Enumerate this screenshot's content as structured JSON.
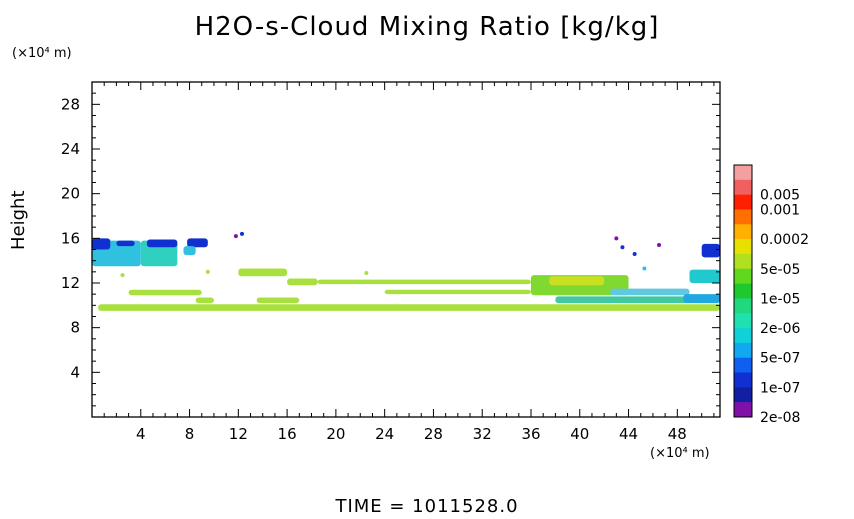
{
  "chart_data": {
    "type": "heatmap",
    "title": "H2O-s-Cloud Mixing Ratio [kg/kg]",
    "ylabel": "Height",
    "x_unit": "(×10⁴ m)",
    "y_unit": "(×10⁴ m)",
    "footer": "TIME  =  1011528.0",
    "xlim": [
      0,
      51.5
    ],
    "ylim": [
      0,
      30
    ],
    "x_ticks": [
      4,
      8,
      12,
      16,
      20,
      24,
      28,
      32,
      36,
      40,
      44,
      48
    ],
    "y_ticks": [
      4,
      8,
      12,
      16,
      20,
      24,
      28
    ],
    "grid": false,
    "legend_placement": "right",
    "colorbar": [
      {
        "label": "",
        "color": "#f5a0a0"
      },
      {
        "label": "0.005",
        "color": "#f06060"
      },
      {
        "label": "0.001",
        "color": "#ff2000"
      },
      {
        "label": "",
        "color": "#ff7000"
      },
      {
        "label": "0.0002",
        "color": "#ffb000"
      },
      {
        "label": "",
        "color": "#e8e000"
      },
      {
        "label": "5e-05",
        "color": "#b0e020"
      },
      {
        "label": "",
        "color": "#60d820"
      },
      {
        "label": "1e-05",
        "color": "#20c830"
      },
      {
        "label": "",
        "color": "#20d880"
      },
      {
        "label": "2e-06",
        "color": "#20e0b0"
      },
      {
        "label": "",
        "color": "#10d0d8"
      },
      {
        "label": "5e-07",
        "color": "#10a8f0"
      },
      {
        "label": "",
        "color": "#1060f0"
      },
      {
        "label": "1e-07",
        "color": "#1030d0"
      },
      {
        "label": "",
        "color": "#1020a0"
      },
      {
        "label": "2e-08",
        "color": "#8010a8"
      }
    ],
    "regions": [
      {
        "x0": 0.5,
        "x1": 51.5,
        "y0": 9.5,
        "y1": 10.1,
        "color": "#a8e040"
      },
      {
        "x0": 0.0,
        "x1": 4.0,
        "y0": 13.5,
        "y1": 15.8,
        "color": "#30c0e0"
      },
      {
        "x0": 0.0,
        "x1": 1.5,
        "y0": 15.0,
        "y1": 16.0,
        "color": "#1030d0"
      },
      {
        "x0": 2.0,
        "x1": 3.5,
        "y0": 15.3,
        "y1": 15.8,
        "color": "#1030d0"
      },
      {
        "x0": 4.0,
        "x1": 7.0,
        "y0": 13.5,
        "y1": 15.8,
        "color": "#30d0c0"
      },
      {
        "x0": 4.5,
        "x1": 7.0,
        "y0": 15.2,
        "y1": 15.9,
        "color": "#1030d0"
      },
      {
        "x0": 7.8,
        "x1": 9.5,
        "y0": 15.2,
        "y1": 16.0,
        "color": "#1030d0"
      },
      {
        "x0": 7.5,
        "x1": 8.5,
        "y0": 14.5,
        "y1": 15.3,
        "color": "#30c0e0"
      },
      {
        "x0": 12.0,
        "x1": 16.0,
        "y0": 12.6,
        "y1": 13.3,
        "color": "#a8e040"
      },
      {
        "x0": 16.0,
        "x1": 18.5,
        "y0": 11.8,
        "y1": 12.4,
        "color": "#a8e040"
      },
      {
        "x0": 18.5,
        "x1": 36.0,
        "y0": 11.9,
        "y1": 12.3,
        "color": "#a8e040"
      },
      {
        "x0": 3.0,
        "x1": 9.0,
        "y0": 10.9,
        "y1": 11.4,
        "color": "#a8e040"
      },
      {
        "x0": 8.5,
        "x1": 10.0,
        "y0": 10.2,
        "y1": 10.7,
        "color": "#a8e040"
      },
      {
        "x0": 13.5,
        "x1": 17.0,
        "y0": 10.2,
        "y1": 10.7,
        "color": "#a8e040"
      },
      {
        "x0": 24.0,
        "x1": 36.0,
        "y0": 11.0,
        "y1": 11.4,
        "color": "#a8e040"
      },
      {
        "x0": 36.0,
        "x1": 44.0,
        "y0": 10.9,
        "y1": 12.7,
        "color": "#80d830"
      },
      {
        "x0": 37.5,
        "x1": 42.0,
        "y0": 11.8,
        "y1": 12.6,
        "color": "#c8e020"
      },
      {
        "x0": 42.5,
        "x1": 49.0,
        "y0": 10.9,
        "y1": 11.5,
        "color": "#60c8e0"
      },
      {
        "x0": 38.0,
        "x1": 49.0,
        "y0": 10.2,
        "y1": 10.8,
        "color": "#40c8a0"
      },
      {
        "x0": 49.0,
        "x1": 51.5,
        "y0": 12.0,
        "y1": 13.2,
        "color": "#20c8d0"
      },
      {
        "x0": 50.0,
        "x1": 51.5,
        "y0": 14.3,
        "y1": 15.5,
        "color": "#1030d0"
      },
      {
        "x0": 48.5,
        "x1": 51.5,
        "y0": 10.2,
        "y1": 11.0,
        "color": "#20a8e0"
      }
    ],
    "specks": [
      {
        "x": 11.8,
        "y": 16.2,
        "color": "#8010a8"
      },
      {
        "x": 12.3,
        "y": 16.4,
        "color": "#1030d0"
      },
      {
        "x": 9.5,
        "y": 13.0,
        "color": "#a8e040"
      },
      {
        "x": 2.5,
        "y": 12.7,
        "color": "#a8e040"
      },
      {
        "x": 22.5,
        "y": 12.9,
        "color": "#a8e040"
      },
      {
        "x": 43.0,
        "y": 16.0,
        "color": "#8010a8"
      },
      {
        "x": 43.5,
        "y": 15.2,
        "color": "#1030d0"
      },
      {
        "x": 44.5,
        "y": 14.6,
        "color": "#1030d0"
      },
      {
        "x": 45.3,
        "y": 13.3,
        "color": "#30c0e0"
      },
      {
        "x": 46.5,
        "y": 15.4,
        "color": "#8010a8"
      }
    ]
  }
}
